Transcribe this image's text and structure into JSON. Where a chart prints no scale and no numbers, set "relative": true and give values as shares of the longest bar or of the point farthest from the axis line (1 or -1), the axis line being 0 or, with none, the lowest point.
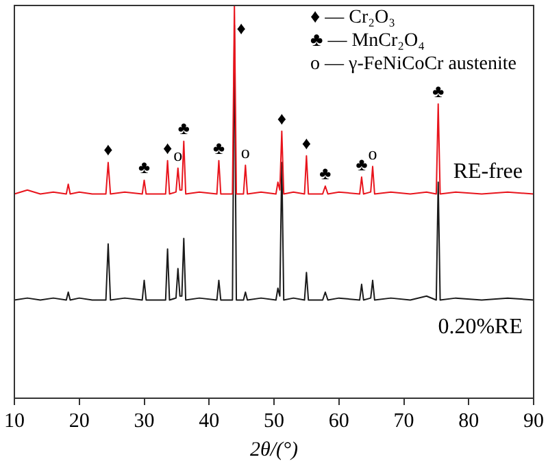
{
  "chart_data": {
    "type": "line",
    "relative": true,
    "xlabel": "2θ/(°)",
    "xlim": [
      10,
      90
    ],
    "xticks": [
      10,
      20,
      30,
      40,
      50,
      60,
      70,
      80,
      90
    ],
    "grid": false,
    "marker": "none",
    "line_style": "solid",
    "x": [
      10,
      12,
      14,
      16,
      18,
      18.3,
      18.6,
      20,
      22,
      24.1,
      24.45,
      24.8,
      27,
      29.7,
      30.0,
      30.3,
      33.3,
      33.6,
      33.9,
      34.9,
      35.2,
      35.5,
      35.8,
      36.1,
      36.4,
      38.5,
      41.2,
      41.5,
      41.8,
      43.6,
      43.9,
      44.2,
      45.3,
      45.6,
      45.9,
      48,
      50.3,
      50.6,
      50.9,
      51.2,
      51.5,
      53,
      54.7,
      55.0,
      55.3,
      57.5,
      57.9,
      58.3,
      60,
      63.2,
      63.5,
      63.8,
      64.9,
      65.2,
      65.5,
      68,
      71,
      73.5,
      75.0,
      75.3,
      75.6,
      78,
      82,
      86,
      90
    ],
    "series": [
      {
        "name": "RE-free",
        "color": "#e8141c",
        "values": [
          0.52,
          0.53,
          0.52,
          0.525,
          0.52,
          0.545,
          0.52,
          0.525,
          0.52,
          0.52,
          0.6,
          0.52,
          0.525,
          0.52,
          0.555,
          0.52,
          0.52,
          0.605,
          0.52,
          0.525,
          0.586,
          0.53,
          0.53,
          0.654,
          0.52,
          0.525,
          0.52,
          0.605,
          0.52,
          0.52,
          1,
          0.52,
          0.52,
          0.593,
          0.52,
          0.525,
          0.52,
          0.55,
          0.53,
          0.68,
          0.52,
          0.525,
          0.52,
          0.617,
          0.52,
          0.52,
          0.54,
          0.52,
          0.525,
          0.52,
          0.563,
          0.52,
          0.525,
          0.59,
          0.52,
          0.525,
          0.52,
          0.525,
          0.52,
          0.749,
          0.52,
          0.525,
          0.52,
          0.525,
          0.52
        ]
      },
      {
        "name": "0.20%RE",
        "color": "#1a1a1a",
        "values": [
          0.25,
          0.255,
          0.25,
          0.255,
          0.25,
          0.27,
          0.25,
          0.255,
          0.25,
          0.25,
          0.393,
          0.25,
          0.255,
          0.25,
          0.3,
          0.25,
          0.25,
          0.38,
          0.25,
          0.255,
          0.33,
          0.26,
          0.26,
          0.407,
          0.25,
          0.255,
          0.25,
          0.3,
          0.25,
          0.25,
          0.95,
          0.25,
          0.25,
          0.27,
          0.25,
          0.255,
          0.25,
          0.28,
          0.26,
          0.6,
          0.25,
          0.255,
          0.25,
          0.32,
          0.25,
          0.25,
          0.27,
          0.25,
          0.255,
          0.25,
          0.29,
          0.25,
          0.255,
          0.3,
          0.25,
          0.255,
          0.25,
          0.26,
          0.25,
          0.55,
          0.25,
          0.255,
          0.25,
          0.255,
          0.25
        ]
      }
    ],
    "annotations": [
      "♦ — Cr₂O₃",
      "♣ — MnCr₂O₄",
      "o — γ-FeNiCoCr austenite",
      {
        "text": "♦",
        "x": 24.45,
        "y": 0.6
      },
      {
        "text": "♣",
        "x": 30.0,
        "y": 0.555
      },
      {
        "text": "♦",
        "x": 33.6,
        "y": 0.605
      },
      {
        "text": "o",
        "x": 35.2,
        "y": 0.586
      },
      {
        "text": "♣",
        "x": 36.1,
        "y": 0.654
      },
      {
        "text": "♣",
        "x": 41.5,
        "y": 0.605
      },
      {
        "text": "♦",
        "x": 43.9,
        "y": 1
      },
      {
        "text": "o",
        "x": 45.6,
        "y": 0.593
      },
      {
        "text": "♦",
        "x": 51.2,
        "y": 0.68
      },
      {
        "text": "♦",
        "x": 55.0,
        "y": 0.617
      },
      {
        "text": "♣",
        "x": 57.9,
        "y": 0.54
      },
      {
        "text": "♣",
        "x": 63.5,
        "y": 0.563
      },
      {
        "text": "o",
        "x": 65.2,
        "y": 0.59
      },
      {
        "text": "♣",
        "x": 75.3,
        "y": 0.749
      }
    ]
  }
}
